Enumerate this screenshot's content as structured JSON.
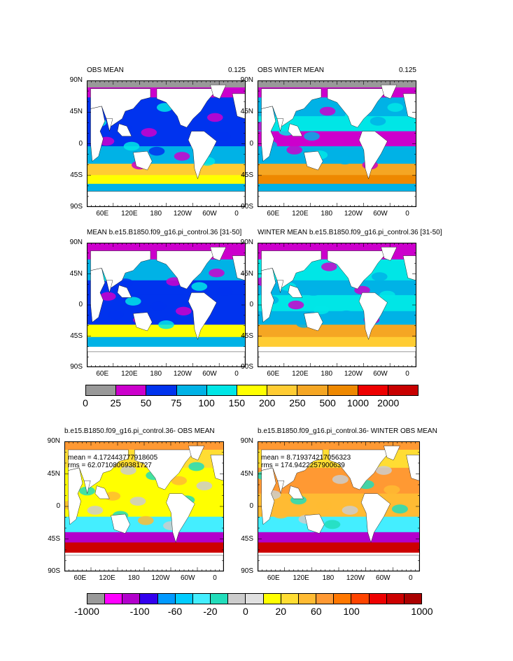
{
  "top_panels": [
    {
      "title": "OBS MEAN",
      "value": "0.125",
      "variant": 0
    },
    {
      "title": "OBS WINTER MEAN",
      "value": "0.125",
      "variant": 1
    },
    {
      "title": "MEAN b.e15.B1850.f09_g16.pi_control.36 [31-50]",
      "value": "",
      "variant": 2
    },
    {
      "title": "WINTER MEAN b.e15.B1850.f09_g16.pi_control.36 [31-50]",
      "value": "",
      "variant": 3
    }
  ],
  "diff_panels": [
    {
      "title": "b.e15.B1850.f09_g16.pi_control.36- OBS MEAN",
      "mean": "mean = 4.172443777918605",
      "rms": "rms = 62.07108069381727",
      "variant": 0
    },
    {
      "title": "b.e15.B1850.f09_g16.pi_control.36- WINTER OBS MEAN",
      "mean": "mean = 8.719374217056323",
      "rms": "rms = 174.9422257900639",
      "variant": 1
    }
  ],
  "lat_labels": [
    "90N",
    "45N",
    "0",
    "45S",
    "90S"
  ],
  "lon_labels": [
    "60E",
    "120E",
    "180",
    "120W",
    "60W",
    "0"
  ],
  "colorbar_top": {
    "labels": [
      "0",
      "25",
      "50",
      "75",
      "100",
      "150",
      "200",
      "250",
      "500",
      "1000",
      "2000"
    ],
    "colors": [
      "#999999",
      "#cc00cc",
      "#0033ee",
      "#00b2e6",
      "#00e6e6",
      "#ffff00",
      "#ffcc33",
      "#f5a623",
      "#ee8800",
      "#ee0000",
      "#c80000"
    ]
  },
  "colorbar_diff": {
    "labels": [
      "-1000",
      "-100",
      "-60",
      "-20",
      "0",
      "20",
      "60",
      "100",
      "1000"
    ],
    "colors": [
      "#999999",
      "#ff00ff",
      "#b200cc",
      "#3300ee",
      "#0099ff",
      "#00ccff",
      "#44eeff",
      "#22ddbb",
      "#cccccc",
      "#e0e0e0",
      "#ffff00",
      "#ffdd33",
      "#ffbb33",
      "#ff9933",
      "#ff7700",
      "#ff4400",
      "#ee0000",
      "#cc0000",
      "#aa0000"
    ]
  },
  "chart_data": [
    {
      "type": "heatmap",
      "title": "OBS MEAN",
      "right_label": "0.125",
      "x_tick_labels": [
        "60E",
        "120E",
        "180",
        "120W",
        "60W",
        "0"
      ],
      "y_tick_labels": [
        "90N",
        "45N",
        "0",
        "45S",
        "90S"
      ],
      "color_levels": [
        "0",
        "25",
        "50",
        "75",
        "100",
        "150",
        "200",
        "250",
        "500",
        "1000",
        "2000"
      ]
    },
    {
      "type": "heatmap",
      "title": "OBS WINTER MEAN",
      "right_label": "0.125",
      "x_tick_labels": [
        "60E",
        "120E",
        "180",
        "120W",
        "60W",
        "0"
      ],
      "y_tick_labels": [
        "90N",
        "45N",
        "0",
        "45S",
        "90S"
      ],
      "color_levels": [
        "0",
        "25",
        "50",
        "75",
        "100",
        "150",
        "200",
        "250",
        "500",
        "1000",
        "2000"
      ]
    },
    {
      "type": "heatmap",
      "title": "MEAN b.e15.B1850.f09_g16.pi_control.36 [31-50]",
      "x_tick_labels": [
        "60E",
        "120E",
        "180",
        "120W",
        "60W",
        "0"
      ],
      "y_tick_labels": [
        "90N",
        "45N",
        "0",
        "45S",
        "90S"
      ],
      "color_levels": [
        "0",
        "25",
        "50",
        "75",
        "100",
        "150",
        "200",
        "250",
        "500",
        "1000",
        "2000"
      ]
    },
    {
      "type": "heatmap",
      "title": "WINTER MEAN b.e15.B1850.f09_g16.pi_control.36 [31-50]",
      "x_tick_labels": [
        "60E",
        "120E",
        "180",
        "120W",
        "60W",
        "0"
      ],
      "y_tick_labels": [
        "90N",
        "45N",
        "0",
        "45S",
        "90S"
      ],
      "color_levels": [
        "0",
        "25",
        "50",
        "75",
        "100",
        "150",
        "200",
        "250",
        "500",
        "1000",
        "2000"
      ]
    },
    {
      "type": "heatmap",
      "title": "b.e15.B1850.f09_g16.pi_control.36- OBS MEAN",
      "annotations": [
        "mean = 4.172443777918605",
        "rms = 62.07108069381727"
      ],
      "x_tick_labels": [
        "60E",
        "120E",
        "180",
        "120W",
        "60W",
        "0"
      ],
      "y_tick_labels": [
        "90N",
        "45N",
        "0",
        "45S",
        "90S"
      ],
      "color_levels": [
        "-1000",
        "-100",
        "-60",
        "-20",
        "0",
        "20",
        "60",
        "100",
        "1000"
      ]
    },
    {
      "type": "heatmap",
      "title": "b.e15.B1850.f09_g16.pi_control.36- WINTER OBS MEAN",
      "annotations": [
        "mean = 8.719374217056323",
        "rms = 174.9422257900639"
      ],
      "x_tick_labels": [
        "60E",
        "120E",
        "180",
        "120W",
        "60W",
        "0"
      ],
      "y_tick_labels": [
        "90N",
        "45N",
        "0",
        "45S",
        "90S"
      ],
      "color_levels": [
        "-1000",
        "-100",
        "-60",
        "-20",
        "0",
        "20",
        "60",
        "100",
        "1000"
      ]
    }
  ]
}
